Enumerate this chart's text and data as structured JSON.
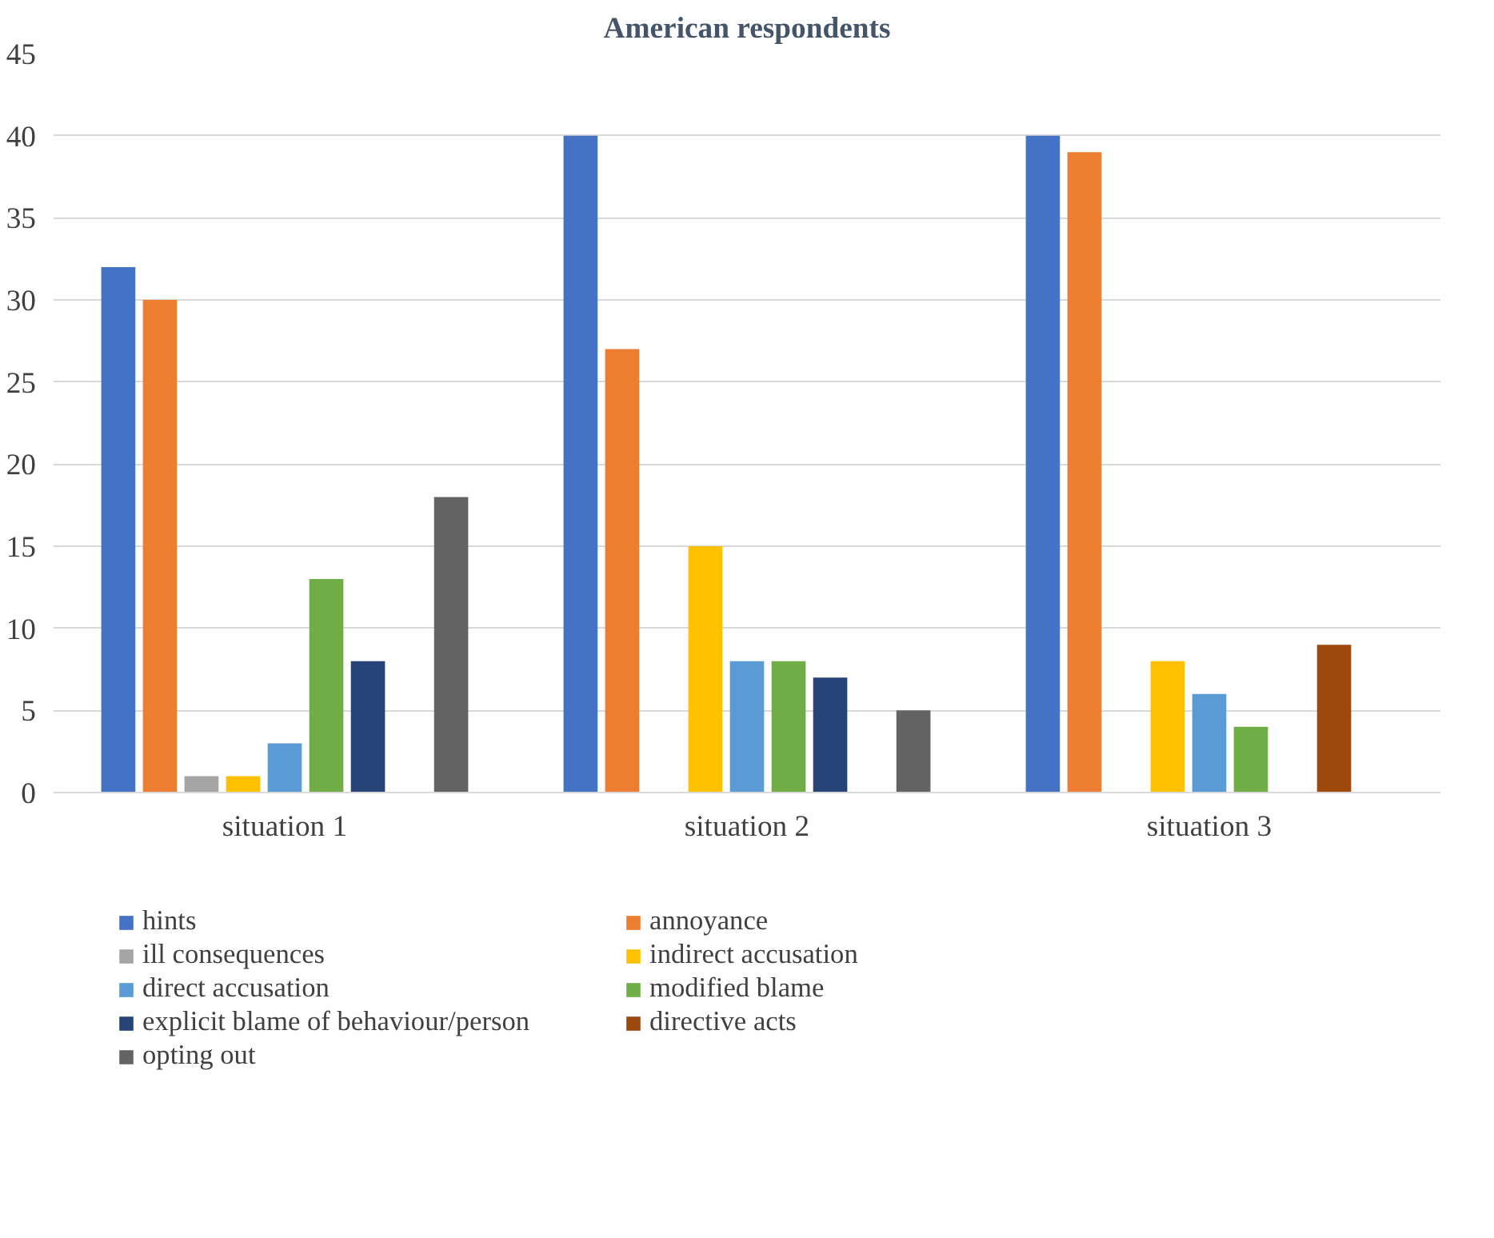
{
  "chart_data": {
    "type": "bar",
    "title": "American respondents",
    "categories": [
      "situation 1",
      "situation 2",
      "situation 3"
    ],
    "series": [
      {
        "name": "hints",
        "color": "#4472c4",
        "values": [
          32,
          40,
          40
        ]
      },
      {
        "name": "annoyance",
        "color": "#ed7d31",
        "values": [
          30,
          27,
          39
        ]
      },
      {
        "name": "ill consequences",
        "color": "#a5a5a5",
        "values": [
          1,
          0,
          0
        ]
      },
      {
        "name": "indirect accusation",
        "color": "#ffc000",
        "values": [
          1,
          15,
          8
        ]
      },
      {
        "name": "direct accusation",
        "color": "#5b9bd5",
        "values": [
          3,
          8,
          6
        ]
      },
      {
        "name": "modified blame",
        "color": "#70ad47",
        "values": [
          13,
          8,
          4
        ]
      },
      {
        "name": "explicit blame of behaviour/person",
        "color": "#264478",
        "values": [
          8,
          7,
          0
        ]
      },
      {
        "name": "directive acts",
        "color": "#9e480e",
        "values": [
          0,
          0,
          9
        ]
      },
      {
        "name": "opting out",
        "color": "#636363",
        "values": [
          18,
          5,
          0
        ]
      }
    ],
    "ylim": [
      0,
      45
    ],
    "yticks": [
      0,
      5,
      10,
      15,
      20,
      25,
      30,
      35,
      40,
      45
    ],
    "grid": "y",
    "legend": "bottom"
  }
}
